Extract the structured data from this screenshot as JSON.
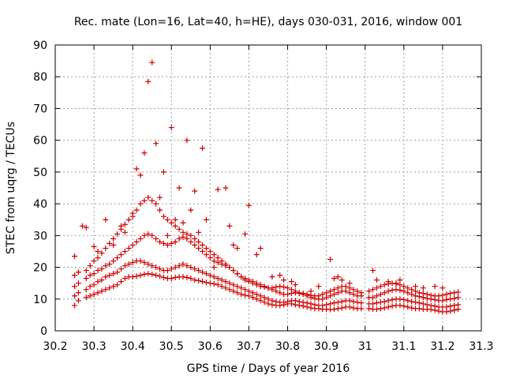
{
  "chart_data": {
    "type": "scatter",
    "title": "Rec. mate (Lon=16, Lat=40, h=HE), days 030-031, 2016, window 001",
    "xlabel": "GPS time / Days of year 2016",
    "ylabel": "STEC from uqrg / TECUs",
    "xlim": [
      30.2,
      31.3
    ],
    "ylim": [
      0,
      90
    ],
    "xticks": [
      "30.2",
      "30.3",
      "30.4",
      "30.5",
      "30.6",
      "30.7",
      "30.8",
      "30.9",
      "31",
      "31.1",
      "31.2",
      "31.3"
    ],
    "yticks": [
      "0",
      "10",
      "20",
      "30",
      "40",
      "50",
      "60",
      "70",
      "80",
      "90"
    ],
    "grid": true,
    "marker": "plus",
    "color": "#cc0000",
    "series": [
      {
        "x": [
          30.25,
          30.26,
          30.28,
          30.29,
          30.3,
          30.31,
          30.32,
          30.33,
          30.34,
          30.35,
          30.36,
          30.37,
          30.38,
          30.39,
          30.4,
          30.41,
          30.42,
          30.43,
          30.44,
          30.45,
          30.46,
          30.47,
          30.48,
          30.49,
          30.5,
          30.51,
          30.52,
          30.53,
          30.54,
          30.55,
          30.56,
          30.57,
          30.58,
          30.59,
          30.6,
          30.61,
          30.62,
          30.63,
          30.64,
          30.65,
          30.66,
          30.67,
          30.68,
          30.69,
          30.7,
          30.71,
          30.72,
          30.73,
          30.74,
          30.75,
          30.76,
          30.77,
          30.78,
          30.79,
          30.8,
          30.81,
          30.82,
          30.83,
          30.84,
          30.85,
          30.86,
          30.87,
          30.88,
          30.89,
          30.9,
          30.91,
          30.92,
          30.93,
          30.94,
          30.95,
          30.96,
          30.97,
          30.98,
          30.99,
          31.01,
          31.02,
          31.03,
          31.04,
          31.05,
          31.06,
          31.07,
          31.08,
          31.09,
          31.1,
          31.11,
          31.12,
          31.13,
          31.14,
          31.15,
          31.16,
          31.17,
          31.18,
          31.19,
          31.2,
          31.21,
          31.22,
          31.23,
          31.24
        ],
        "y": [
          8,
          9.5,
          10.5,
          11,
          11.5,
          12,
          12.5,
          13,
          13.5,
          14,
          14.5,
          15.5,
          16.5,
          17,
          17,
          17.2,
          17.5,
          17.8,
          18,
          17.8,
          17.5,
          17.2,
          16.8,
          16.5,
          16.5,
          16.8,
          17,
          17,
          16.8,
          16.5,
          16,
          15.8,
          15.5,
          15.2,
          15,
          14.8,
          14.5,
          14,
          13.5,
          13,
          12.5,
          12,
          11.5,
          11.2,
          11,
          10.5,
          10,
          9.5,
          9,
          8.5,
          8.2,
          8,
          8,
          8.2,
          8.5,
          8.5,
          8.2,
          8,
          7.8,
          7.5,
          7.2,
          7,
          7,
          6.8,
          6.8,
          6.7,
          6.8,
          7,
          7.2,
          7.5,
          7.5,
          7.2,
          7,
          7,
          7,
          6.8,
          6.8,
          7,
          7.2,
          7.5,
          7.8,
          8,
          8,
          7.8,
          7.5,
          7.2,
          7,
          7,
          6.8,
          6.8,
          6.7,
          6.5,
          6.2,
          6,
          6,
          6.2,
          6.5,
          6.8
        ]
      },
      {
        "x": [
          30.25,
          30.26,
          30.28,
          30.29,
          30.3,
          30.31,
          30.32,
          30.33,
          30.34,
          30.35,
          30.36,
          30.37,
          30.38,
          30.39,
          30.4,
          30.41,
          30.42,
          30.43,
          30.44,
          30.45,
          30.46,
          30.47,
          30.48,
          30.49,
          30.5,
          30.51,
          30.52,
          30.53,
          30.54,
          30.55,
          30.56,
          30.57,
          30.58,
          30.59,
          30.6,
          30.61,
          30.62,
          30.63,
          30.64,
          30.65,
          30.66,
          30.67,
          30.68,
          30.69,
          30.7,
          30.71,
          30.72,
          30.73,
          30.74,
          30.75,
          30.76,
          30.77,
          30.78,
          30.79,
          30.8,
          30.81,
          30.82,
          30.83,
          30.84,
          30.85,
          30.86,
          30.87,
          30.88,
          30.89,
          30.9,
          30.91,
          30.92,
          30.93,
          30.94,
          30.95,
          30.96,
          30.97,
          30.98,
          30.99,
          31.01,
          31.02,
          31.03,
          31.04,
          31.05,
          31.06,
          31.07,
          31.08,
          31.09,
          31.1,
          31.11,
          31.12,
          31.13,
          31.14,
          31.15,
          31.16,
          31.17,
          31.18,
          31.19,
          31.2,
          31.21,
          31.22,
          31.23,
          31.24
        ],
        "y": [
          11,
          12,
          13,
          14,
          14.5,
          15.5,
          16,
          17,
          17.5,
          18,
          18.5,
          19.5,
          20.5,
          21,
          21.5,
          22,
          22,
          21.5,
          21,
          20.5,
          20,
          19.5,
          19,
          19,
          19.5,
          20,
          20.5,
          21,
          20.5,
          20,
          19.5,
          19,
          18.5,
          18,
          17.5,
          17,
          16.5,
          16,
          15.5,
          15,
          14.5,
          14,
          13.5,
          13,
          12.5,
          12,
          11.5,
          11,
          10.5,
          10,
          9.5,
          9.2,
          9,
          9,
          9.2,
          9.5,
          9.5,
          9.2,
          9,
          8.8,
          8.5,
          8.2,
          8,
          8,
          8.2,
          8.5,
          8.8,
          9,
          9.2,
          9.5,
          9.5,
          9.2,
          9,
          8.8,
          8.5,
          8.5,
          8.8,
          9,
          9.2,
          9.5,
          9.8,
          10,
          10,
          9.8,
          9.5,
          9.2,
          9,
          8.8,
          8.5,
          8.2,
          8,
          7.8,
          7.5,
          7.5,
          7.5,
          7.8,
          8,
          8.2
        ]
      },
      {
        "x": [
          30.25,
          30.26,
          30.28,
          30.29,
          30.3,
          30.31,
          30.32,
          30.33,
          30.34,
          30.35,
          30.36,
          30.37,
          30.38,
          30.39,
          30.4,
          30.41,
          30.42,
          30.43,
          30.44,
          30.45,
          30.46,
          30.47,
          30.48,
          30.49,
          30.5,
          30.51,
          30.52,
          30.53,
          30.54,
          30.55,
          30.56,
          30.57,
          30.58,
          30.59,
          30.6,
          30.61,
          30.62,
          30.63,
          30.64,
          30.65,
          30.66,
          30.67,
          30.68,
          30.69,
          30.7,
          30.71,
          30.72,
          30.73,
          30.74,
          30.75,
          30.76,
          30.77,
          30.78,
          30.79,
          30.8,
          30.81,
          30.82,
          30.83,
          30.84,
          30.85,
          30.86,
          30.87,
          30.88,
          30.89,
          30.9,
          30.91,
          30.92,
          30.93,
          30.94,
          30.95,
          30.96,
          30.97,
          30.98,
          30.99,
          31.01,
          31.02,
          31.03,
          31.04,
          31.05,
          31.06,
          31.07,
          31.08,
          31.09,
          31.1,
          31.11,
          31.12,
          31.13,
          31.14,
          31.15,
          31.16,
          31.17,
          31.18,
          31.19,
          31.2,
          31.21,
          31.22,
          31.23,
          31.24
        ],
        "y": [
          14,
          15,
          16.5,
          17.5,
          18,
          19,
          19.5,
          20.5,
          21,
          22,
          23,
          24,
          25,
          26,
          27,
          28,
          29,
          30,
          30.5,
          30,
          29,
          28,
          27.5,
          27,
          27.5,
          28,
          29,
          29.5,
          29,
          28,
          27,
          26,
          25,
          24,
          23,
          22,
          21.5,
          21,
          20.5,
          20,
          19,
          18,
          17,
          16.5,
          16,
          15.5,
          15,
          14.5,
          14,
          13.5,
          13,
          12.5,
          12,
          11.5,
          11.5,
          11.8,
          12,
          11.8,
          11.5,
          11,
          10.5,
          10.2,
          10,
          10,
          10.5,
          11,
          11.5,
          12,
          12.5,
          12.5,
          12,
          11.5,
          11,
          11,
          10.5,
          10.5,
          11,
          11.5,
          12,
          12.5,
          12.8,
          13,
          12.8,
          12.5,
          12,
          11.5,
          11,
          10.8,
          10.5,
          10.2,
          10,
          9.8,
          9.5,
          9.5,
          9.8,
          10,
          10.2,
          10.5
        ]
      },
      {
        "x": [
          30.25,
          30.26,
          30.28,
          30.29,
          30.3,
          30.31,
          30.32,
          30.33,
          30.34,
          30.35,
          30.36,
          30.37,
          30.38,
          30.39,
          30.4,
          30.41,
          30.42,
          30.43,
          30.44,
          30.45,
          30.46,
          30.47,
          30.48,
          30.49,
          30.5,
          30.51,
          30.52,
          30.53,
          30.54,
          30.55,
          30.56,
          30.57,
          30.58,
          30.59,
          30.6,
          30.61,
          30.62,
          30.63,
          30.64,
          30.65,
          30.66,
          30.67,
          30.68,
          30.69,
          30.7,
          30.71,
          30.72,
          30.73,
          30.74,
          30.75,
          30.76,
          30.77,
          30.78,
          30.79,
          30.8,
          30.81,
          30.82,
          30.83,
          30.84,
          30.85,
          30.86,
          30.87,
          30.88,
          30.89,
          30.9,
          30.91,
          30.92,
          30.93,
          30.94,
          30.95,
          30.96,
          30.97,
          30.98,
          30.99,
          31.01,
          31.02,
          31.03,
          31.04,
          31.05,
          31.06,
          31.07,
          31.08,
          31.09,
          31.1,
          31.11,
          31.12,
          31.13,
          31.14,
          31.15,
          31.16,
          31.17,
          31.18,
          31.19,
          31.2,
          31.21,
          31.22,
          31.23,
          31.24
        ],
        "y": [
          17.5,
          18.5,
          19,
          20.5,
          22,
          23,
          24.5,
          26,
          27.5,
          29,
          30.5,
          32,
          33.5,
          35,
          36,
          38,
          40,
          41,
          42,
          41,
          40,
          38,
          36,
          35,
          34,
          33,
          32,
          31,
          30.5,
          30,
          29,
          28,
          27,
          26,
          25,
          24,
          23,
          22,
          21,
          20,
          19,
          18,
          17,
          16,
          15.5,
          15,
          14.5,
          14,
          13.8,
          13.5,
          13.5,
          13.8,
          14,
          13.8,
          13.5,
          13,
          12.5,
          12,
          11.8,
          11.5,
          11.2,
          11,
          11,
          11.5,
          12,
          12.5,
          13,
          13.5,
          14,
          14,
          13.5,
          13,
          12.5,
          12,
          12.5,
          13,
          13.5,
          14,
          14.5,
          14.8,
          15,
          14.8,
          14.5,
          14,
          13.5,
          13,
          12.5,
          12,
          11.8,
          11.5,
          11.2,
          11,
          11,
          11.2,
          11.5,
          11.8,
          12,
          12.2
        ]
      },
      {
        "x": [
          30.25,
          30.27,
          30.28,
          30.3,
          30.31,
          30.33,
          30.35,
          30.37,
          30.38,
          30.4,
          30.41,
          30.42,
          30.43,
          30.44,
          30.45,
          30.46,
          30.47,
          30.48,
          30.49,
          30.5,
          30.51,
          30.52,
          30.53,
          30.54,
          30.55,
          30.56,
          30.57,
          30.58,
          30.59,
          30.61,
          30.62,
          30.64,
          30.65,
          30.66,
          30.67,
          30.69,
          30.7,
          30.72,
          30.73,
          30.76,
          30.78,
          30.79,
          30.81,
          30.82,
          30.86,
          30.88,
          30.91,
          30.92,
          30.93,
          30.94,
          30.96,
          31.02,
          31.03,
          31.06,
          31.08,
          31.09,
          31.13,
          31.15,
          31.18,
          31.2
        ],
        "y": [
          23.5,
          33,
          32.5,
          26.5,
          25,
          35,
          27,
          33,
          31,
          37,
          51,
          49,
          56,
          78.5,
          84.5,
          59,
          42,
          50,
          30,
          64,
          35,
          45,
          34,
          60,
          38,
          44,
          31,
          57.5,
          35,
          20,
          44.5,
          45,
          33,
          27,
          26,
          30.5,
          39.5,
          24,
          26,
          17,
          17.5,
          16,
          15.5,
          14.5,
          12.5,
          14,
          22.5,
          16.5,
          17,
          16,
          15,
          19,
          16,
          15.5,
          15,
          16,
          14,
          13.5,
          14,
          13.5
        ]
      }
    ]
  }
}
